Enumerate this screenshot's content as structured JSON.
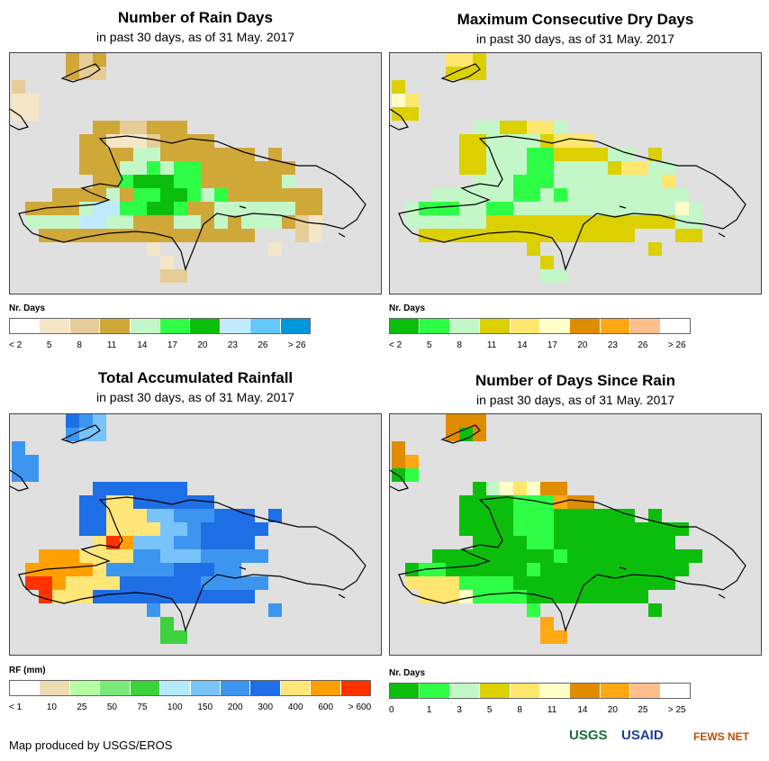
{
  "panels": [
    {
      "title": "Number of Rain Days",
      "subtitle": "in past 30 days, as of 31 May. 2017",
      "legend_title": "Nr. Days",
      "legend_colors": [
        "#ffffff",
        "#f5e6c8",
        "#e6cc96",
        "#d0a838",
        "#c3f7c8",
        "#2eff46",
        "#0cbe0c",
        "#bfeaff",
        "#64c8ff",
        "#0096dc"
      ],
      "legend_labels": [
        "< 2",
        "5",
        "8",
        "11",
        "14",
        "17",
        "20",
        "23",
        "26",
        "> 26"
      ],
      "grid": [
        "....323....................",
        "....322....................",
        "2..........................",
        "11.........................",
        "11.........................",
        "......3322333..............",
        ".....3311123333............",
        ".....3333443333333.3.......",
        ".....3334454553333333......",
        "......335666553333334......",
        "...33334355665453333333....",
        ".3333477556653344444433....",
        ".4444774433344343444321....",
        "..3333333333333333...21....",
        "..........1........1.......",
        "...........1...............",
        "...........22..............",
        "..........................."
      ]
    },
    {
      "title": "Maximum Consecutive Dry Days",
      "subtitle": "in past 30 days, as of 31 May. 2017",
      "legend_title": "Nr. Days",
      "legend_colors": [
        "#0cbe0c",
        "#2eff46",
        "#c3f7c8",
        "#dcd000",
        "#ffe66e",
        "#ffffc8",
        "#e08c00",
        "#ffa814",
        "#ffbe8c",
        "#ffffff"
      ],
      "legend_labels": [
        "< 2",
        "5",
        "8",
        "11",
        "14",
        "17",
        "20",
        "23",
        "26",
        "> 26"
      ],
      "grid": [
        "....443....................",
        "....333....................",
        "3..........................",
        "54.........................",
        "33.........................",
        "......2233442..............",
        ".....3322223444............",
        ".....3322211333322.3.......",
        ".....3322211222234422......",
        "......222111222222224......",
        "...2222221121222222222.....",
        ".2111221122222222222252....",
        ".2222223333333333333322....",
        "..3333333333333333...33....",
        "..........3........3.......",
        "...........3...............",
        "...........22..............",
        "..........................."
      ]
    },
    {
      "title": "Total Accumulated Rainfall",
      "subtitle": "in past 30 days, as of 31 May. 2017",
      "legend_title": "RF (mm)",
      "legend_colors": [
        "#ffffff",
        "#f0dcb4",
        "#b4ffa0",
        "#78e878",
        "#3cd23c",
        "#b4ebfa",
        "#78c3fa",
        "#3c96f0",
        "#1e6ee6",
        "#ffe678",
        "#ffa000",
        "#ff3200"
      ],
      "legend_labels": [
        "< 1",
        "10",
        "25",
        "50",
        "75",
        "100",
        "150",
        "200",
        "300",
        "400",
        "600",
        "> 600"
      ],
      "grid": [
        "....876....................",
        "....766....................",
        "7..........................",
        "77.........................",
        "77.........................",
        "......8888888..............",
        ".....8899888888............",
        ".....8899966777888.8.......",
        ".....88999966788888........",
        "......91110666778888.......",
        "..10101099997766677777.....",
        ".101010101097777788877.....",
        ".111110999988888877777.....",
        "..11999888888888888........",
        "..........7........7.......",
        "...........4...............",
        "...........44..............",
        "..........................."
      ]
    },
    {
      "title": "Number of Days Since Rain",
      "subtitle": "in past 30 days, as of 31 May. 2017",
      "legend_title": "Nr. Days",
      "legend_colors": [
        "#0cbe0c",
        "#2eff46",
        "#c3f7c8",
        "#dcd000",
        "#ffe66e",
        "#ffffc8",
        "#e08c00",
        "#ffa814",
        "#ffbe8c",
        "#ffffff"
      ],
      "legend_labels": [
        "0",
        "1",
        "3",
        "5",
        "8",
        "11",
        "14",
        "20",
        "25",
        "> 25"
      ],
      "grid": [
        "....666....................",
        "....606....................",
        "6..........................",
        "67.........................",
        "01.........................",
        "......0254566..............",
        ".....0000111766............",
        ".....0000111000000.0.......",
        ".....00001110000000000.....",
        "......000011000000000......",
        "...00000000010000000000....",
        ".011000000100000000000.....",
        ".44441111000000000000......",
        "..44451111000000000........",
        "..........1........0.......",
        "...........7...............",
        "...........77..............",
        "..........................."
      ]
    }
  ],
  "footer": {
    "credit": "Map produced by USGS/EROS",
    "logos": [
      "USGS",
      "USAID",
      "FEWS NET"
    ]
  }
}
